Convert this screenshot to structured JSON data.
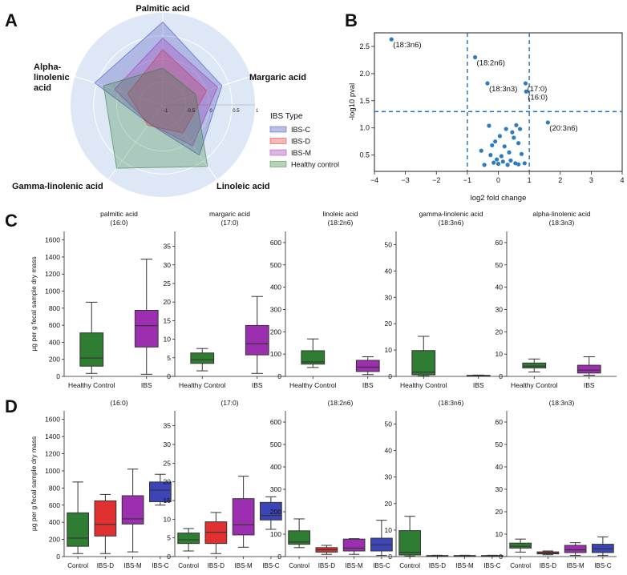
{
  "panel_labels": {
    "a": "A",
    "b": "B",
    "c": "C",
    "d": "D"
  },
  "y_axis_label": "µg per g fecal sample dry mass",
  "colors": {
    "ibs_c": "#3b45b8",
    "ibs_d": "#e03030",
    "ibs_m": "#9c2fb0",
    "control": "#2e7d32",
    "radar_bg": "#dde7f5",
    "volcano_point": "#2f7bbf",
    "threshold": "#1f6fb5"
  },
  "chart_data": [
    {
      "id": "radar",
      "type": "radar",
      "axes": [
        "Palmitic acid",
        "Margaric acid",
        "Linoleic acid",
        "Gamma-linolenic acid",
        "Alpha-linolenic acid"
      ],
      "range": [
        -1,
        1
      ],
      "ring_labels": [
        "-1",
        "-0.5",
        "0",
        "0.5",
        "1"
      ],
      "legend_title": "IBS Type",
      "series": [
        {
          "name": "IBS-C",
          "key": "ibs_c",
          "values": [
            0.8,
            0.35,
            0.35,
            -0.5,
            0.55
          ]
        },
        {
          "name": "IBS-D",
          "key": "ibs_d",
          "values": [
            0.2,
            0.0,
            -0.25,
            -0.45,
            -0.2
          ]
        },
        {
          "name": "IBS-M",
          "key": "ibs_m",
          "values": [
            0.45,
            0.25,
            0.1,
            -0.5,
            0.1
          ]
        },
        {
          "name": "Healthy control",
          "key": "control",
          "values": [
            -0.2,
            -0.25,
            0.65,
            0.7,
            0.35
          ]
        }
      ]
    },
    {
      "id": "volcano",
      "type": "scatter",
      "xlabel": "log2 fold change",
      "ylabel": "-log10 pval",
      "xlim": [
        -4,
        4
      ],
      "ylim": [
        0.2,
        2.75
      ],
      "xticks": [
        -4,
        -3,
        -2,
        -1,
        0,
        1,
        2,
        3,
        4
      ],
      "yticks": [
        0.5,
        1.0,
        1.5,
        2.0,
        2.5
      ],
      "ytick_labels": [
        "0.5",
        "1.0",
        "1.5",
        "2.0",
        "2.5"
      ],
      "vlines": [
        -1,
        1
      ],
      "hline": 1.3,
      "labeled_points": [
        {
          "x": -3.45,
          "y": 2.63,
          "label": "(18:3n6)"
        },
        {
          "x": -0.75,
          "y": 2.3,
          "label": "(18:2n6)"
        },
        {
          "x": -0.35,
          "y": 1.82,
          "label": "(18:3n3)"
        },
        {
          "x": 0.88,
          "y": 1.82,
          "label": "(17:0)"
        },
        {
          "x": 0.9,
          "y": 1.67,
          "label": "(16:0)"
        },
        {
          "x": 1.6,
          "y": 1.1,
          "label": "(20:3n6)"
        }
      ],
      "points": [
        {
          "x": -0.3,
          "y": 1.04
        },
        {
          "x": 0.25,
          "y": 0.98
        },
        {
          "x": 0.45,
          "y": 0.92
        },
        {
          "x": 0.7,
          "y": 0.98
        },
        {
          "x": 0.05,
          "y": 0.85
        },
        {
          "x": -0.1,
          "y": 0.75
        },
        {
          "x": 0.5,
          "y": 0.82
        },
        {
          "x": 0.65,
          "y": 0.72
        },
        {
          "x": -0.2,
          "y": 0.68
        },
        {
          "x": 0.2,
          "y": 0.66
        },
        {
          "x": -0.55,
          "y": 0.58
        },
        {
          "x": 0.35,
          "y": 0.55
        },
        {
          "x": -0.25,
          "y": 0.5
        },
        {
          "x": 0.1,
          "y": 0.48
        },
        {
          "x": 0.75,
          "y": 0.52
        },
        {
          "x": -0.05,
          "y": 0.42
        },
        {
          "x": 0.4,
          "y": 0.4
        },
        {
          "x": 0.55,
          "y": 0.35
        },
        {
          "x": -0.15,
          "y": 0.36
        },
        {
          "x": 0.15,
          "y": 0.38
        },
        {
          "x": 0.85,
          "y": 0.35
        },
        {
          "x": 0.3,
          "y": 0.32
        },
        {
          "x": -0.45,
          "y": 0.32
        },
        {
          "x": 0.65,
          "y": 0.33
        },
        {
          "x": 0.0,
          "y": 0.34
        },
        {
          "x": 0.58,
          "y": 1.05
        }
      ]
    },
    {
      "id": "c1",
      "type": "box",
      "title": "palmitic acid",
      "subtitle": "(16:0)",
      "ylim": [
        0,
        1700
      ],
      "yticks": [
        0,
        200,
        400,
        600,
        800,
        1000,
        1200,
        1400,
        1600
      ],
      "groups": [
        {
          "name": "Healthy Control",
          "key": "control",
          "whislo": 35,
          "q1": 120,
          "med": 215,
          "q3": 510,
          "whishi": 870
        },
        {
          "name": "IBS",
          "key": "ibs_m",
          "whislo": 25,
          "q1": 345,
          "med": 595,
          "q3": 775,
          "whishi": 1375
        }
      ]
    },
    {
      "id": "c2",
      "type": "box",
      "title": "margaric acid",
      "subtitle": "(17:0)",
      "ylim": [
        0,
        39
      ],
      "yticks": [
        0,
        5,
        10,
        15,
        20,
        25,
        30,
        35
      ],
      "groups": [
        {
          "name": "Healthy Control",
          "key": "control",
          "whislo": 1.5,
          "q1": 3.5,
          "med": 4.5,
          "q3": 6.3,
          "whishi": 7.5
        },
        {
          "name": "IBS",
          "key": "ibs_m",
          "whislo": 0.8,
          "q1": 5.8,
          "med": 8.8,
          "q3": 13.7,
          "whishi": 21.5
        }
      ]
    },
    {
      "id": "c3",
      "type": "box",
      "title": "linoleic acid",
      "subtitle": "(18:2n6)",
      "ylim": [
        0,
        650
      ],
      "yticks": [
        0,
        100,
        200,
        300,
        400,
        500,
        600
      ],
      "groups": [
        {
          "name": "Healthy Control",
          "key": "control",
          "whislo": 40,
          "q1": 55,
          "med": 65,
          "q3": 115,
          "whishi": 168
        },
        {
          "name": "IBS",
          "key": "ibs_m",
          "whislo": 8,
          "q1": 22,
          "med": 42,
          "q3": 72,
          "whishi": 88
        }
      ]
    },
    {
      "id": "c4",
      "type": "box",
      "title": "gamma-linolenic acid",
      "subtitle": "(18:3n6)",
      "ylim": [
        0,
        55
      ],
      "yticks": [
        0,
        10,
        20,
        30,
        40,
        50
      ],
      "groups": [
        {
          "name": "Healthy Control",
          "key": "control",
          "whislo": 0.2,
          "q1": 0.6,
          "med": 1.6,
          "q3": 9.8,
          "whishi": 15.2
        },
        {
          "name": "IBS",
          "key": "ibs_m",
          "whislo": 0.1,
          "q1": 0.2,
          "med": 0.3,
          "q3": 0.4,
          "whishi": 0.5
        }
      ]
    },
    {
      "id": "c5",
      "type": "box",
      "title": "alpha-linolenic acid",
      "subtitle": "(18:3n3)",
      "ylim": [
        0,
        65
      ],
      "yticks": [
        0,
        10,
        20,
        30,
        40,
        50,
        60
      ],
      "groups": [
        {
          "name": "Healthy Control",
          "key": "control",
          "whislo": 2,
          "q1": 3.8,
          "med": 4.6,
          "q3": 6,
          "whishi": 7.8
        },
        {
          "name": "IBS",
          "key": "ibs_m",
          "whislo": 0.5,
          "q1": 1.5,
          "med": 2.8,
          "q3": 5,
          "whishi": 8.8
        }
      ]
    },
    {
      "id": "d1",
      "type": "box",
      "title": "(16:0)",
      "subtitle": "",
      "ylim": [
        0,
        1700
      ],
      "yticks": [
        0,
        200,
        400,
        600,
        800,
        1000,
        1200,
        1400,
        1600
      ],
      "groups": [
        {
          "name": "Control",
          "key": "control",
          "whislo": 35,
          "q1": 120,
          "med": 215,
          "q3": 510,
          "whishi": 870
        },
        {
          "name": "IBS-D",
          "key": "ibs_d",
          "whislo": 35,
          "q1": 240,
          "med": 375,
          "q3": 650,
          "whishi": 725
        },
        {
          "name": "IBS-M",
          "key": "ibs_m",
          "whislo": 55,
          "q1": 380,
          "med": 440,
          "q3": 710,
          "whishi": 1020
        },
        {
          "name": "IBS-C",
          "key": "ibs_c",
          "whislo": 600,
          "q1": 640,
          "med": 775,
          "q3": 870,
          "whishi": 960
        }
      ]
    },
    {
      "id": "d2",
      "type": "box",
      "title": "(17:0)",
      "subtitle": "",
      "ylim": [
        0,
        39
      ],
      "yticks": [
        0,
        5,
        10,
        15,
        20,
        25,
        30,
        35
      ],
      "groups": [
        {
          "name": "Control",
          "key": "control",
          "whislo": 1.5,
          "q1": 3.5,
          "med": 4.5,
          "q3": 6.3,
          "whishi": 7.5
        },
        {
          "name": "IBS-D",
          "key": "ibs_d",
          "whislo": 0.8,
          "q1": 3.5,
          "med": 6.5,
          "q3": 9.3,
          "whishi": 11.8
        },
        {
          "name": "IBS-M",
          "key": "ibs_m",
          "whislo": 2.5,
          "q1": 5.8,
          "med": 8.5,
          "q3": 15.5,
          "whishi": 21.5
        },
        {
          "name": "IBS-C",
          "key": "ibs_c",
          "whislo": 7.3,
          "q1": 9.8,
          "med": 11,
          "q3": 14.5,
          "whishi": 16
        }
      ]
    },
    {
      "id": "d3",
      "type": "box",
      "title": "(18:2n6)",
      "subtitle": "",
      "ylim": [
        0,
        650
      ],
      "yticks": [
        0,
        100,
        200,
        300,
        400,
        500,
        600
      ],
      "groups": [
        {
          "name": "Control",
          "key": "control",
          "whislo": 40,
          "q1": 55,
          "med": 65,
          "q3": 115,
          "whishi": 168
        },
        {
          "name": "IBS-D",
          "key": "ibs_d",
          "whislo": 10,
          "q1": 20,
          "med": 30,
          "q3": 40,
          "whishi": 50
        },
        {
          "name": "IBS-M",
          "key": "ibs_m",
          "whislo": 10,
          "q1": 25,
          "med": 38,
          "q3": 78,
          "whishi": 80
        },
        {
          "name": "IBS-C",
          "key": "ibs_c",
          "whislo": 5,
          "q1": 25,
          "med": 52,
          "q3": 82,
          "whishi": 162
        }
      ]
    },
    {
      "id": "d4",
      "type": "box",
      "title": "(18:3n6)",
      "subtitle": "",
      "ylim": [
        0,
        55
      ],
      "yticks": [
        0,
        10,
        20,
        30,
        40,
        50
      ],
      "groups": [
        {
          "name": "Control",
          "key": "control",
          "whislo": 0.2,
          "q1": 0.6,
          "med": 1.6,
          "q3": 9.8,
          "whishi": 15.2
        },
        {
          "name": "IBS-D",
          "key": "ibs_d",
          "whislo": 0.1,
          "q1": 0.2,
          "med": 0.3,
          "q3": 0.4,
          "whishi": 0.5
        },
        {
          "name": "IBS-M",
          "key": "ibs_m",
          "whislo": 0.1,
          "q1": 0.2,
          "med": 0.3,
          "q3": 0.4,
          "whishi": 0.5
        },
        {
          "name": "IBS-C",
          "key": "ibs_c",
          "whislo": 0.1,
          "q1": 0.2,
          "med": 0.3,
          "q3": 0.4,
          "whishi": 0.5
        }
      ]
    },
    {
      "id": "d5",
      "type": "box",
      "title": "(18:3n3)",
      "subtitle": "",
      "ylim": [
        0,
        65
      ],
      "yticks": [
        0,
        10,
        20,
        30,
        40,
        50,
        60
      ],
      "groups": [
        {
          "name": "Control",
          "key": "control",
          "whislo": 2,
          "q1": 3.8,
          "med": 4.6,
          "q3": 6,
          "whishi": 7.8
        },
        {
          "name": "IBS-D",
          "key": "ibs_d",
          "whislo": 0.8,
          "q1": 1.2,
          "med": 1.6,
          "q3": 2.1,
          "whishi": 2.5
        },
        {
          "name": "IBS-M",
          "key": "ibs_m",
          "whislo": 0.5,
          "q1": 1.8,
          "med": 3,
          "q3": 5,
          "whishi": 6.2
        },
        {
          "name": "IBS-C",
          "key": "ibs_c",
          "whislo": 0.5,
          "q1": 1.8,
          "med": 3.5,
          "q3": 5.5,
          "whishi": 8.8
        }
      ]
    }
  ]
}
